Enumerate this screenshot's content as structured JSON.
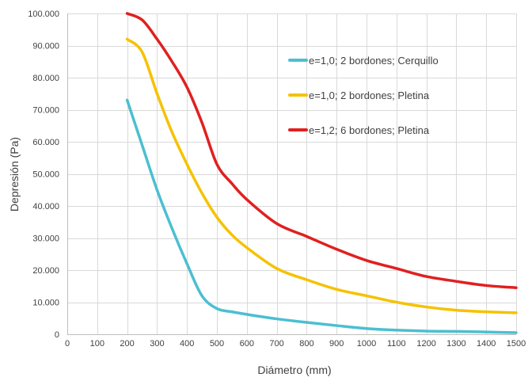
{
  "chart_data": {
    "type": "line",
    "title": "",
    "xlabel": "Diámetro (mm)",
    "ylabel": "Depresión (Pa)",
    "xlim": [
      0,
      1500
    ],
    "ylim": [
      0,
      100000
    ],
    "x_ticks": [
      0,
      100,
      200,
      300,
      400,
      500,
      600,
      700,
      800,
      900,
      1000,
      1100,
      1200,
      1300,
      1400,
      1500
    ],
    "x_tick_labels": [
      "0",
      "100",
      "200",
      "300",
      "400",
      "500",
      "600",
      "700",
      "800",
      "900",
      "1000",
      "1100",
      "1200",
      "1300",
      "1400",
      "1500"
    ],
    "y_ticks": [
      0,
      10000,
      20000,
      30000,
      40000,
      50000,
      60000,
      70000,
      80000,
      90000,
      100000
    ],
    "y_tick_labels": [
      "0",
      "10.000",
      "20.000",
      "30.000",
      "40.000",
      "50.000",
      "60.000",
      "70.000",
      "80.000",
      "90.000",
      "100.000"
    ],
    "grid": true,
    "legend_position": "right",
    "series": [
      {
        "name": "e=1,0; 2 bordones; Cerquillo",
        "color": "#4bbfd1",
        "x": [
          200,
          250,
          300,
          350,
          400,
          450,
          500,
          550,
          600,
          700,
          800,
          900,
          1000,
          1100,
          1200,
          1300,
          1400,
          1500
        ],
        "y": [
          73000,
          59000,
          45000,
          33000,
          22000,
          12000,
          8000,
          7000,
          6200,
          4800,
          3700,
          2700,
          1800,
          1300,
          1000,
          900,
          700,
          500
        ]
      },
      {
        "name": "e=1,0; 2 bordones; Pletina",
        "color": "#f5c200",
        "x": [
          200,
          250,
          300,
          350,
          400,
          450,
          500,
          550,
          600,
          700,
          800,
          900,
          1000,
          1100,
          1200,
          1300,
          1400,
          1500
        ],
        "y": [
          92000,
          88000,
          75000,
          63000,
          53000,
          44000,
          36500,
          31000,
          27000,
          20500,
          17000,
          14000,
          12000,
          10000,
          8500,
          7500,
          7000,
          6700
        ]
      },
      {
        "name": "e=1,2; 6 bordones; Pletina",
        "color": "#e02020",
        "x": [
          200,
          250,
          300,
          350,
          400,
          450,
          500,
          550,
          600,
          700,
          800,
          900,
          1000,
          1100,
          1200,
          1300,
          1400,
          1500
        ],
        "y": [
          100000,
          98000,
          92000,
          85000,
          77000,
          66000,
          53000,
          47000,
          42000,
          34500,
          30500,
          26500,
          23000,
          20500,
          18000,
          16500,
          15200,
          14500
        ]
      }
    ]
  }
}
